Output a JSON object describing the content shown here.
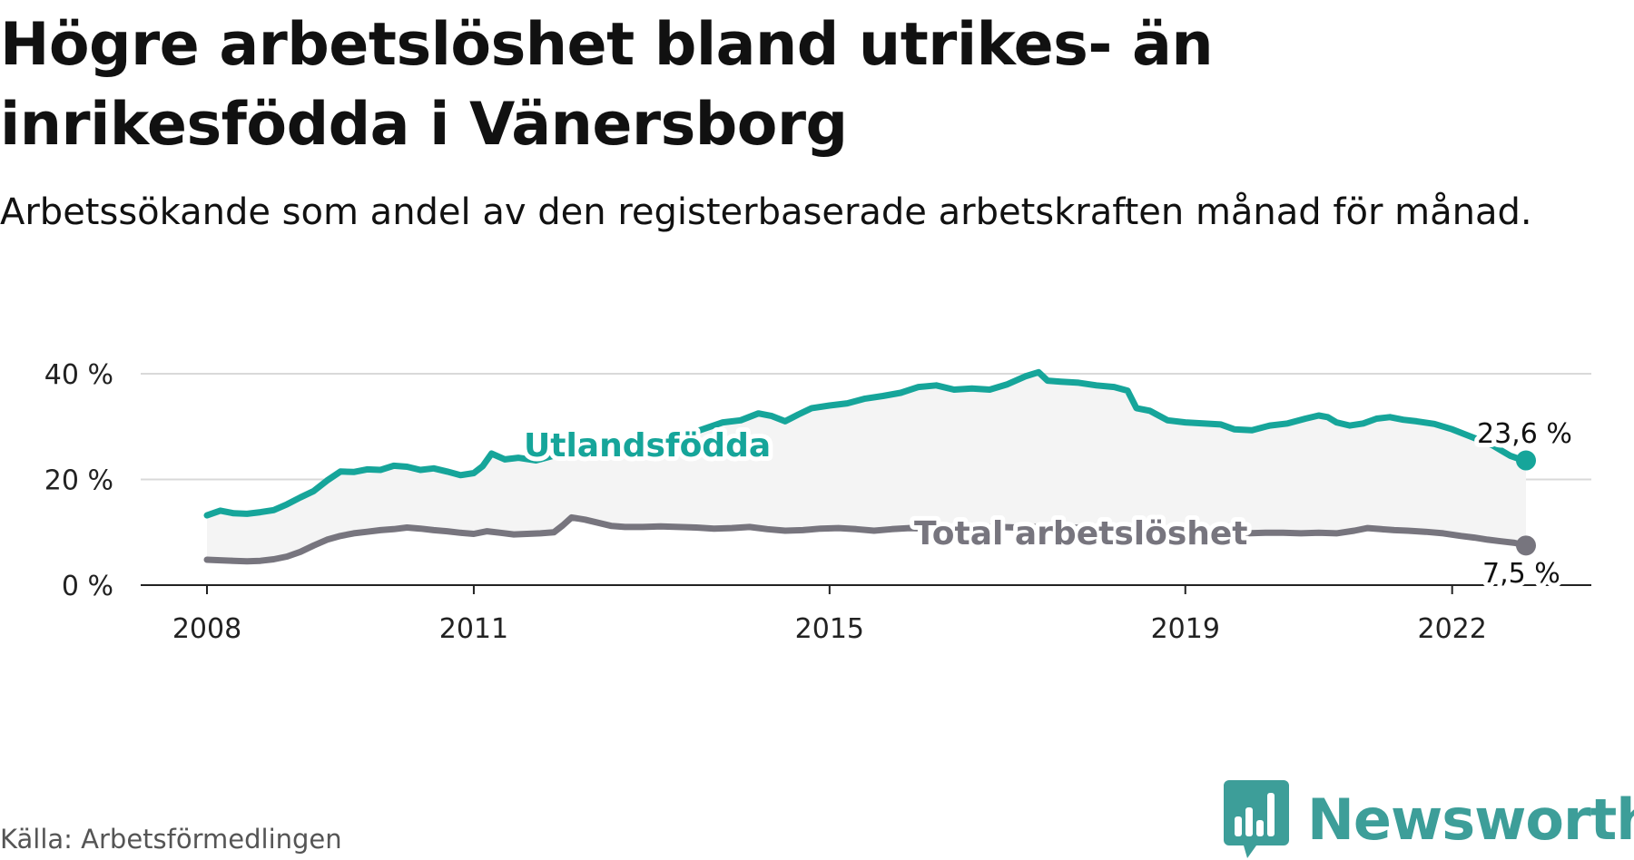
{
  "header": {
    "title": "Högre arbetslöshet bland utrikes- än inrikesfödda i Vänersborg",
    "subtitle": "Arbetssökande som andel av den registerbaserade arbetskraften månad för månad."
  },
  "footer": {
    "source": "Källa: Arbetsförmedlingen",
    "brand": "Newsworthy"
  },
  "colors": {
    "foreign": "#16a59a",
    "total": "#77757e",
    "brand": "#3d9e99",
    "grid": "#d9d9d9",
    "band": "#f4f4f4"
  },
  "chart_data": {
    "type": "line",
    "title": "Högre arbetslöshet bland utrikes- än inrikesfödda i Vänersborg",
    "subtitle": "Arbetssökande som andel av den registerbaserade arbetskraften månad för månad.",
    "xlabel": "",
    "ylabel": "",
    "xlim": [
      2008.0,
      2022.83
    ],
    "ylim": [
      0,
      40
    ],
    "grid": true,
    "y_ticks": [
      0,
      20,
      40
    ],
    "y_tick_labels": [
      "0 %",
      "20 %",
      "40 %"
    ],
    "x_ticks": [
      2008,
      2011,
      2015,
      2019,
      2022
    ],
    "x_tick_labels": [
      "2008",
      "2011",
      "2015",
      "2019",
      "2022"
    ],
    "series": [
      {
        "name": "Utlandsfödda",
        "label": "Utlandsfödda",
        "end_label": "23,6 %",
        "points": [
          [
            2008.0,
            13.2
          ],
          [
            2008.15,
            14.1
          ],
          [
            2008.3,
            13.6
          ],
          [
            2008.45,
            13.5
          ],
          [
            2008.6,
            13.8
          ],
          [
            2008.75,
            14.2
          ],
          [
            2008.9,
            15.3
          ],
          [
            2009.05,
            16.6
          ],
          [
            2009.2,
            17.8
          ],
          [
            2009.35,
            19.8
          ],
          [
            2009.5,
            21.5
          ],
          [
            2009.65,
            21.4
          ],
          [
            2009.8,
            21.9
          ],
          [
            2009.95,
            21.8
          ],
          [
            2010.1,
            22.6
          ],
          [
            2010.25,
            22.4
          ],
          [
            2010.4,
            21.8
          ],
          [
            2010.55,
            22.1
          ],
          [
            2010.7,
            21.5
          ],
          [
            2010.85,
            20.8
          ],
          [
            2011.0,
            21.2
          ],
          [
            2011.1,
            22.5
          ],
          [
            2011.2,
            24.9
          ],
          [
            2011.35,
            23.8
          ],
          [
            2011.5,
            24.1
          ],
          [
            2011.7,
            23.6
          ],
          [
            2011.9,
            24.5
          ],
          [
            2012.2,
            25.5
          ],
          [
            2012.6,
            26.5
          ],
          [
            2013.0,
            27.5
          ],
          [
            2013.4,
            28.5
          ],
          [
            2013.8,
            30.8
          ],
          [
            2014.0,
            31.2
          ],
          [
            2014.2,
            32.5
          ],
          [
            2014.35,
            32.0
          ],
          [
            2014.5,
            31.0
          ],
          [
            2014.65,
            32.3
          ],
          [
            2014.8,
            33.5
          ],
          [
            2015.0,
            34.0
          ],
          [
            2015.2,
            34.4
          ],
          [
            2015.4,
            35.3
          ],
          [
            2015.6,
            35.8
          ],
          [
            2015.8,
            36.4
          ],
          [
            2016.0,
            37.5
          ],
          [
            2016.2,
            37.8
          ],
          [
            2016.4,
            37.0
          ],
          [
            2016.6,
            37.2
          ],
          [
            2016.8,
            37.0
          ],
          [
            2017.0,
            38.0
          ],
          [
            2017.2,
            39.5
          ],
          [
            2017.35,
            40.3
          ],
          [
            2017.45,
            38.7
          ],
          [
            2017.6,
            38.5
          ],
          [
            2017.8,
            38.3
          ],
          [
            2018.0,
            37.8
          ],
          [
            2018.2,
            37.5
          ],
          [
            2018.35,
            36.8
          ],
          [
            2018.45,
            33.5
          ],
          [
            2018.6,
            33.0
          ],
          [
            2018.8,
            31.2
          ],
          [
            2019.0,
            30.8
          ],
          [
            2019.2,
            30.6
          ],
          [
            2019.4,
            30.4
          ],
          [
            2019.55,
            29.5
          ],
          [
            2019.75,
            29.3
          ],
          [
            2019.95,
            30.2
          ],
          [
            2020.15,
            30.6
          ],
          [
            2020.35,
            31.5
          ],
          [
            2020.5,
            32.1
          ],
          [
            2020.6,
            31.8
          ],
          [
            2020.7,
            30.8
          ],
          [
            2020.85,
            30.2
          ],
          [
            2021.0,
            30.6
          ],
          [
            2021.15,
            31.5
          ],
          [
            2021.3,
            31.8
          ],
          [
            2021.45,
            31.3
          ],
          [
            2021.6,
            31.0
          ],
          [
            2021.8,
            30.5
          ],
          [
            2022.0,
            29.5
          ],
          [
            2022.15,
            28.5
          ],
          [
            2022.3,
            27.5
          ],
          [
            2022.45,
            26.5
          ],
          [
            2022.55,
            25.5
          ],
          [
            2022.65,
            24.5
          ],
          [
            2022.75,
            23.9
          ],
          [
            2022.83,
            23.6
          ]
        ]
      },
      {
        "name": "Total arbetslöshet",
        "label": "Total arbetslöshet",
        "end_label": "7,5 %",
        "points": [
          [
            2008.0,
            4.8
          ],
          [
            2008.15,
            4.7
          ],
          [
            2008.3,
            4.6
          ],
          [
            2008.45,
            4.5
          ],
          [
            2008.6,
            4.6
          ],
          [
            2008.75,
            4.9
          ],
          [
            2008.9,
            5.4
          ],
          [
            2009.05,
            6.3
          ],
          [
            2009.2,
            7.5
          ],
          [
            2009.35,
            8.6
          ],
          [
            2009.5,
            9.3
          ],
          [
            2009.65,
            9.8
          ],
          [
            2009.8,
            10.1
          ],
          [
            2009.95,
            10.4
          ],
          [
            2010.1,
            10.6
          ],
          [
            2010.25,
            10.9
          ],
          [
            2010.4,
            10.7
          ],
          [
            2010.55,
            10.4
          ],
          [
            2010.7,
            10.2
          ],
          [
            2010.85,
            9.9
          ],
          [
            2011.0,
            9.7
          ],
          [
            2011.15,
            10.2
          ],
          [
            2011.3,
            9.9
          ],
          [
            2011.45,
            9.6
          ],
          [
            2011.6,
            9.7
          ],
          [
            2011.75,
            9.8
          ],
          [
            2011.9,
            10.0
          ],
          [
            2012.0,
            11.3
          ],
          [
            2012.1,
            12.8
          ],
          [
            2012.25,
            12.4
          ],
          [
            2012.4,
            11.8
          ],
          [
            2012.55,
            11.2
          ],
          [
            2012.7,
            11.0
          ],
          [
            2012.9,
            11.0
          ],
          [
            2013.1,
            11.1
          ],
          [
            2013.3,
            11.0
          ],
          [
            2013.5,
            10.9
          ],
          [
            2013.7,
            10.7
          ],
          [
            2013.9,
            10.8
          ],
          [
            2014.1,
            11.0
          ],
          [
            2014.3,
            10.6
          ],
          [
            2014.5,
            10.3
          ],
          [
            2014.7,
            10.4
          ],
          [
            2014.9,
            10.7
          ],
          [
            2015.1,
            10.8
          ],
          [
            2015.3,
            10.6
          ],
          [
            2015.5,
            10.3
          ],
          [
            2015.7,
            10.6
          ],
          [
            2015.9,
            10.8
          ],
          [
            2016.1,
            10.7
          ],
          [
            2016.3,
            10.9
          ],
          [
            2016.5,
            10.8
          ],
          [
            2016.7,
            10.9
          ],
          [
            2016.9,
            11.0
          ],
          [
            2017.1,
            10.9
          ],
          [
            2017.3,
            11.0
          ],
          [
            2017.5,
            10.8
          ],
          [
            2017.7,
            10.9
          ],
          [
            2017.9,
            10.8
          ],
          [
            2018.1,
            10.9
          ],
          [
            2018.3,
            10.7
          ],
          [
            2018.5,
            10.5
          ],
          [
            2018.7,
            10.3
          ],
          [
            2018.9,
            10.2
          ],
          [
            2019.1,
            10.1
          ],
          [
            2019.3,
            10.0
          ],
          [
            2019.5,
            9.9
          ],
          [
            2019.7,
            9.8
          ],
          [
            2019.9,
            9.9
          ],
          [
            2020.1,
            9.9
          ],
          [
            2020.3,
            9.8
          ],
          [
            2020.5,
            9.9
          ],
          [
            2020.7,
            9.8
          ],
          [
            2020.9,
            10.3
          ],
          [
            2021.05,
            10.8
          ],
          [
            2021.2,
            10.6
          ],
          [
            2021.35,
            10.4
          ],
          [
            2021.5,
            10.3
          ],
          [
            2021.7,
            10.1
          ],
          [
            2021.9,
            9.8
          ],
          [
            2022.1,
            9.3
          ],
          [
            2022.25,
            9.0
          ],
          [
            2022.4,
            8.6
          ],
          [
            2022.55,
            8.3
          ],
          [
            2022.7,
            8.0
          ],
          [
            2022.83,
            7.5
          ]
        ]
      }
    ]
  }
}
